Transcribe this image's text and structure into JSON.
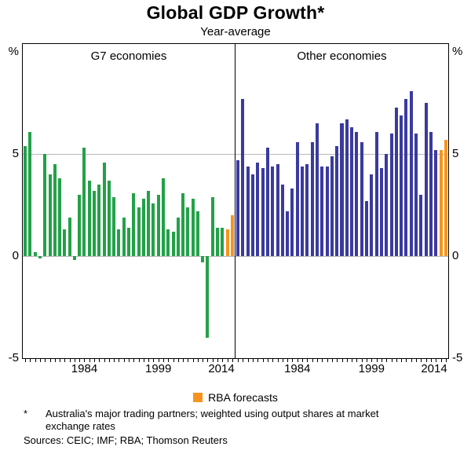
{
  "title": "Global GDP Growth*",
  "subtitle": "Year-average",
  "axis": {
    "y_unit": "%",
    "y_ticks": [
      5,
      0,
      -5
    ],
    "x_tick_labels": [
      "1984",
      "1999",
      "2014"
    ]
  },
  "legend": {
    "label": "RBA forecasts",
    "color": "#F7941E"
  },
  "footnote": {
    "marker": "*",
    "text": "Australia's major trading partners; weighted using output shares at market exchange rates",
    "sources": "Sources: CEIC; IMF; RBA; Thomson Reuters"
  },
  "chart_data": {
    "type": "bar",
    "title": "Global GDP Growth*",
    "subtitle": "Year-average",
    "ylabel": "%",
    "ylim": [
      -5,
      10.4
    ],
    "gridlines": [
      0,
      5
    ],
    "forecast_color": "#F7941E",
    "forecast_start": 2013,
    "years": [
      1972,
      1973,
      1974,
      1975,
      1976,
      1977,
      1978,
      1979,
      1980,
      1981,
      1982,
      1983,
      1984,
      1985,
      1986,
      1987,
      1988,
      1989,
      1990,
      1991,
      1992,
      1993,
      1994,
      1995,
      1996,
      1997,
      1998,
      1999,
      2000,
      2001,
      2002,
      2003,
      2004,
      2005,
      2006,
      2007,
      2008,
      2009,
      2010,
      2011,
      2012,
      2013,
      2014
    ],
    "panels": [
      {
        "label": "G7 economies",
        "color": "#23A148",
        "values": [
          5.4,
          6.1,
          0.2,
          -0.1,
          5.0,
          4.0,
          4.5,
          3.8,
          1.3,
          1.9,
          -0.2,
          3.0,
          5.3,
          3.7,
          3.2,
          3.5,
          4.6,
          3.7,
          2.9,
          1.3,
          1.9,
          1.4,
          3.1,
          2.4,
          2.8,
          3.2,
          2.6,
          3.0,
          3.8,
          1.3,
          1.2,
          1.9,
          3.1,
          2.4,
          2.8,
          2.2,
          -0.3,
          -4.0,
          2.9,
          1.4,
          1.4,
          1.3,
          2.0
        ]
      },
      {
        "label": "Other economies",
        "color": "#3A3AA0",
        "values": [
          4.7,
          7.7,
          4.4,
          4.0,
          4.6,
          4.3,
          5.3,
          4.4,
          4.5,
          3.5,
          2.2,
          3.3,
          5.6,
          4.4,
          4.5,
          5.6,
          6.5,
          4.4,
          4.4,
          4.9,
          5.4,
          6.5,
          6.7,
          6.3,
          6.1,
          5.6,
          2.7,
          4.0,
          6.1,
          4.3,
          5.0,
          6.0,
          7.3,
          6.9,
          7.7,
          8.1,
          6.0,
          3.0,
          7.5,
          6.1,
          5.2,
          5.2,
          5.7
        ]
      }
    ]
  }
}
